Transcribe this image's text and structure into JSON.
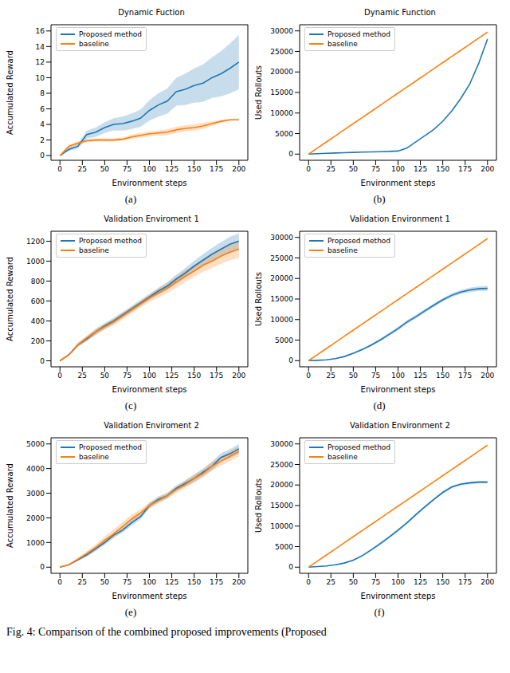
{
  "chart_data": [
    {
      "type": "line",
      "title": "Dynamic Fuction",
      "subplot_label": "(a)",
      "x_label": "Environment steps",
      "y_label": "Accumulated Reward",
      "legend": "upper left",
      "x": [
        0,
        10,
        20,
        30,
        40,
        50,
        60,
        70,
        80,
        90,
        100,
        110,
        120,
        130,
        140,
        150,
        160,
        170,
        180,
        190,
        200
      ],
      "xlim": [
        -10,
        210
      ],
      "xticks": [
        0,
        25,
        50,
        75,
        100,
        125,
        150,
        175,
        200
      ],
      "ylim": [
        -0.6,
        16.8
      ],
      "yticks": [
        0,
        2,
        4,
        6,
        8,
        10,
        12,
        14,
        16
      ],
      "series": [
        {
          "name": "Proposed method",
          "color": "#1f77b4",
          "values": [
            0,
            0.8,
            1.2,
            2.7,
            3.0,
            3.6,
            4.0,
            4.1,
            4.4,
            4.8,
            5.8,
            6.5,
            7.0,
            8.2,
            8.5,
            9.0,
            9.3,
            10.0,
            10.5,
            11.2,
            12.0
          ],
          "error": [
            0,
            0.2,
            0.3,
            0.5,
            0.6,
            0.7,
            0.8,
            0.9,
            1.0,
            1.1,
            1.3,
            1.5,
            1.6,
            1.8,
            2.0,
            2.2,
            2.4,
            2.6,
            2.9,
            3.2,
            3.5
          ]
        },
        {
          "name": "baseline",
          "color": "#ff7f0e",
          "values": [
            0,
            1.2,
            1.6,
            1.9,
            2.0,
            2.0,
            2.0,
            2.1,
            2.4,
            2.6,
            2.8,
            2.9,
            3.0,
            3.3,
            3.5,
            3.6,
            3.8,
            4.1,
            4.4,
            4.6,
            4.6
          ],
          "error": [
            0,
            0.2,
            0.2,
            0.2,
            0.2,
            0.2,
            0.2,
            0.2,
            0.3,
            0.3,
            0.3,
            0.3,
            0.4,
            0.4,
            0.4,
            0.4,
            0.4,
            0.3,
            0.2,
            0.1,
            0.1
          ]
        }
      ]
    },
    {
      "type": "line",
      "title": "Dynamic Function",
      "subplot_label": "(b)",
      "x_label": "Environment steps",
      "y_label": "Used Rollouts",
      "legend": "upper left",
      "x": [
        0,
        10,
        20,
        30,
        40,
        50,
        60,
        70,
        80,
        90,
        100,
        110,
        120,
        130,
        140,
        150,
        160,
        170,
        180,
        190,
        200
      ],
      "xlim": [
        -10,
        210
      ],
      "xticks": [
        0,
        25,
        50,
        75,
        100,
        125,
        150,
        175,
        200
      ],
      "ylim": [
        -1500,
        31500
      ],
      "yticks": [
        0,
        5000,
        10000,
        15000,
        20000,
        25000,
        30000
      ],
      "series": [
        {
          "name": "Proposed method",
          "color": "#1f77b4",
          "values": [
            0,
            100,
            200,
            280,
            350,
            420,
            480,
            540,
            600,
            650,
            750,
            1500,
            3000,
            4500,
            6000,
            8000,
            10500,
            13500,
            17000,
            22000,
            28000
          ]
        },
        {
          "name": "baseline",
          "color": "#ff7f0e",
          "values": [
            0,
            1485,
            2970,
            4455,
            5940,
            7425,
            8910,
            10395,
            11880,
            13365,
            14850,
            16335,
            17820,
            19305,
            20790,
            22275,
            23760,
            25245,
            26730,
            28215,
            29700
          ]
        }
      ]
    },
    {
      "type": "line",
      "title": "Validation Enviroment 1",
      "subplot_label": "(c)",
      "x_label": "Environment steps",
      "y_label": "Accumulated Reward",
      "legend": "upper left",
      "x": [
        0,
        10,
        20,
        30,
        40,
        50,
        60,
        70,
        80,
        90,
        100,
        110,
        120,
        130,
        140,
        150,
        160,
        170,
        180,
        190,
        200
      ],
      "xlim": [
        -10,
        210
      ],
      "xticks": [
        0,
        25,
        50,
        75,
        100,
        125,
        150,
        175,
        200
      ],
      "ylim": [
        -60,
        1300
      ],
      "yticks": [
        0,
        200,
        400,
        600,
        800,
        1000,
        1200
      ],
      "series": [
        {
          "name": "Proposed method",
          "color": "#1f77b4",
          "values": [
            0,
            60,
            160,
            220,
            290,
            350,
            400,
            460,
            520,
            580,
            640,
            700,
            750,
            820,
            880,
            950,
            1010,
            1070,
            1120,
            1170,
            1200
          ],
          "error": [
            0,
            10,
            20,
            25,
            30,
            30,
            30,
            30,
            30,
            30,
            30,
            35,
            40,
            45,
            50,
            55,
            60,
            65,
            70,
            75,
            80
          ]
        },
        {
          "name": "baseline",
          "color": "#ff7f0e",
          "values": [
            0,
            60,
            160,
            230,
            290,
            340,
            390,
            450,
            510,
            570,
            630,
            680,
            730,
            790,
            850,
            900,
            960,
            1000,
            1050,
            1090,
            1120
          ],
          "error": [
            0,
            10,
            20,
            25,
            30,
            30,
            35,
            35,
            35,
            35,
            40,
            45,
            50,
            55,
            60,
            60,
            65,
            70,
            75,
            80,
            90
          ]
        }
      ]
    },
    {
      "type": "line",
      "title": "Validation Environment 1",
      "subplot_label": "(d)",
      "x_label": "Environment steps",
      "y_label": "Used Rollouts",
      "legend": "upper left",
      "x": [
        0,
        10,
        20,
        30,
        40,
        50,
        60,
        70,
        80,
        90,
        100,
        110,
        120,
        130,
        140,
        150,
        160,
        170,
        180,
        190,
        200
      ],
      "xlim": [
        -10,
        210
      ],
      "xticks": [
        0,
        25,
        50,
        75,
        100,
        125,
        150,
        175,
        200
      ],
      "ylim": [
        -1500,
        31500
      ],
      "yticks": [
        0,
        5000,
        10000,
        15000,
        20000,
        25000,
        30000
      ],
      "series": [
        {
          "name": "Proposed method",
          "color": "#1f77b4",
          "values": [
            0,
            80,
            200,
            500,
            1000,
            1800,
            2700,
            3800,
            5000,
            6400,
            7800,
            9400,
            10700,
            12100,
            13500,
            14800,
            15900,
            16700,
            17200,
            17500,
            17600
          ],
          "error": [
            0,
            20,
            40,
            80,
            150,
            200,
            250,
            300,
            350,
            400,
            450,
            450,
            450,
            450,
            450,
            450,
            450,
            500,
            550,
            550,
            600
          ]
        },
        {
          "name": "baseline",
          "color": "#ff7f0e",
          "values": [
            0,
            1485,
            2970,
            4455,
            5940,
            7425,
            8910,
            10395,
            11880,
            13365,
            14850,
            16335,
            17820,
            19305,
            20790,
            22275,
            23760,
            25245,
            26730,
            28215,
            29700
          ]
        }
      ]
    },
    {
      "type": "line",
      "title": "Validation Enviroment 2",
      "subplot_label": "(e)",
      "x_label": "Environment steps",
      "y_label": "Accumulated Reward",
      "legend": "upper left",
      "x": [
        0,
        10,
        20,
        30,
        40,
        50,
        60,
        70,
        80,
        90,
        100,
        110,
        120,
        130,
        140,
        150,
        160,
        170,
        180,
        190,
        200
      ],
      "xlim": [
        -10,
        210
      ],
      "xticks": [
        0,
        25,
        50,
        75,
        100,
        125,
        150,
        175,
        200
      ],
      "ylim": [
        -250,
        5250
      ],
      "yticks": [
        0,
        1000,
        2000,
        3000,
        4000,
        5000
      ],
      "series": [
        {
          "name": "Proposed method",
          "color": "#1f77b4",
          "values": [
            0,
            100,
            300,
            500,
            750,
            1000,
            1300,
            1500,
            1800,
            2050,
            2500,
            2750,
            2900,
            3200,
            3400,
            3600,
            3850,
            4100,
            4450,
            4600,
            4800
          ],
          "error": [
            0,
            20,
            50,
            80,
            100,
            100,
            100,
            100,
            120,
            120,
            120,
            120,
            120,
            120,
            130,
            150,
            150,
            180,
            180,
            180,
            200
          ]
        },
        {
          "name": "baseline",
          "color": "#ff7f0e",
          "values": [
            0,
            100,
            320,
            550,
            800,
            1100,
            1350,
            1650,
            1950,
            2200,
            2500,
            2700,
            2900,
            3150,
            3350,
            3600,
            3800,
            4100,
            4300,
            4500,
            4700
          ],
          "error": [
            0,
            20,
            60,
            100,
            120,
            150,
            180,
            180,
            180,
            150,
            120,
            120,
            120,
            140,
            150,
            160,
            170,
            180,
            180,
            200,
            200
          ]
        }
      ]
    },
    {
      "type": "line",
      "title": "Validation Environment 2",
      "subplot_label": "(f)",
      "x_label": "Environment steps",
      "y_label": "Used Rollouts",
      "legend": "upper left",
      "x": [
        0,
        10,
        20,
        30,
        40,
        50,
        60,
        70,
        80,
        90,
        100,
        110,
        120,
        130,
        140,
        150,
        160,
        170,
        180,
        190,
        200
      ],
      "xlim": [
        -10,
        210
      ],
      "xticks": [
        0,
        25,
        50,
        75,
        100,
        125,
        150,
        175,
        200
      ],
      "ylim": [
        -1500,
        31500
      ],
      "yticks": [
        0,
        5000,
        10000,
        15000,
        20000,
        25000,
        30000
      ],
      "series": [
        {
          "name": "Proposed method",
          "color": "#1f77b4",
          "values": [
            0,
            150,
            300,
            600,
            1000,
            1700,
            2800,
            4200,
            5700,
            7300,
            9000,
            10800,
            12800,
            14700,
            16500,
            18200,
            19500,
            20200,
            20500,
            20700,
            20700
          ],
          "error": [
            0,
            20,
            40,
            60,
            100,
            150,
            200,
            250,
            300,
            300,
            300,
            300,
            300,
            300,
            300,
            300,
            300,
            300,
            300,
            300,
            300
          ]
        },
        {
          "name": "baseline",
          "color": "#ff7f0e",
          "values": [
            0,
            1485,
            2970,
            4455,
            5940,
            7425,
            8910,
            10395,
            11880,
            13365,
            14850,
            16335,
            17820,
            19305,
            20790,
            22275,
            23760,
            25245,
            26730,
            28215,
            29700
          ]
        }
      ]
    }
  ],
  "caption": "Fig. 4: Comparison of the combined proposed improvements (Proposed"
}
